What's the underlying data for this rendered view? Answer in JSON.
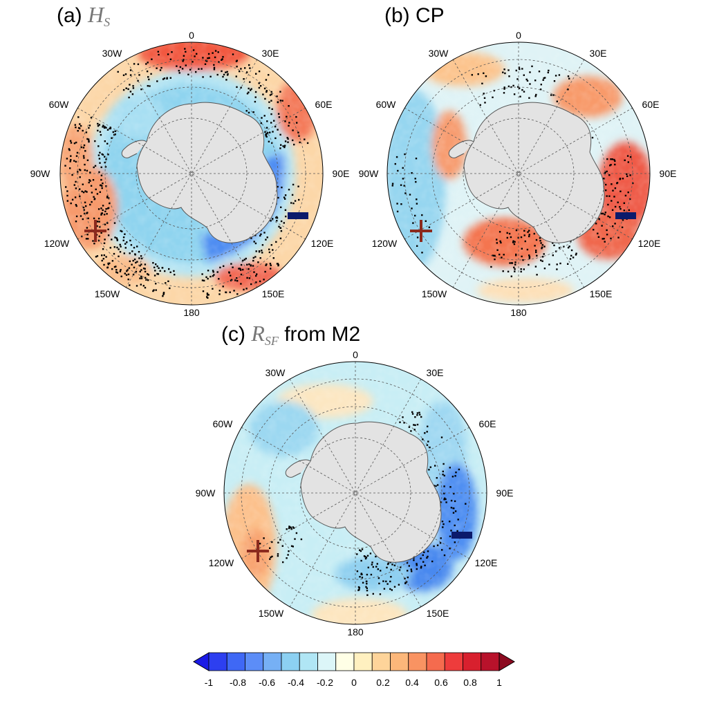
{
  "panels": [
    {
      "id": "a",
      "title_prefix": "(a) ",
      "title_main": "H",
      "title_sub": "S",
      "title_suffix": "",
      "anomaly_pattern": "coastal negative ring, offshore positive belt",
      "cross_marker": "plus",
      "dash_marker": "minus"
    },
    {
      "id": "b",
      "title_prefix": "(b) CP",
      "title_main": "",
      "title_sub": "",
      "title_suffix": "",
      "anomaly_pattern": "positive near East Antarctica 90E-150E, weak negative west",
      "cross_marker": "plus",
      "dash_marker": "minus"
    },
    {
      "id": "c",
      "title_prefix": "(c) ",
      "title_main": "R",
      "title_sub": "SF",
      "title_suffix": " from M2",
      "anomaly_pattern": "negative near 90E-150E coast, positive near 120W",
      "cross_marker": "plus",
      "dash_marker": "minus"
    }
  ],
  "longitude_labels": [
    "0",
    "30E",
    "60E",
    "90E",
    "120E",
    "150E",
    "180",
    "150W",
    "120W",
    "90W",
    "60W",
    "30W"
  ],
  "colorbar": {
    "levels": [
      "-1",
      "-0.8",
      "-0.6",
      "-0.4",
      "-0.2",
      "0",
      "0.2",
      "0.4",
      "0.6",
      "0.8",
      "1"
    ],
    "colors": [
      "#1a1ae6",
      "#2d3ff0",
      "#3f68f5",
      "#5c8df7",
      "#76b0f5",
      "#8cd0f2",
      "#b0e6f5",
      "#dcf6f8",
      "#ffffe6",
      "#fff0c0",
      "#fed49a",
      "#fcb77a",
      "#f99362",
      "#f56b4e",
      "#ee3c3c",
      "#d8202e",
      "#b8122b",
      "#8c0a20"
    ]
  },
  "colors": {
    "land": "#e3e3e3",
    "marker_cross": "#8b2a1e",
    "marker_dash": "#0b1a6b"
  }
}
